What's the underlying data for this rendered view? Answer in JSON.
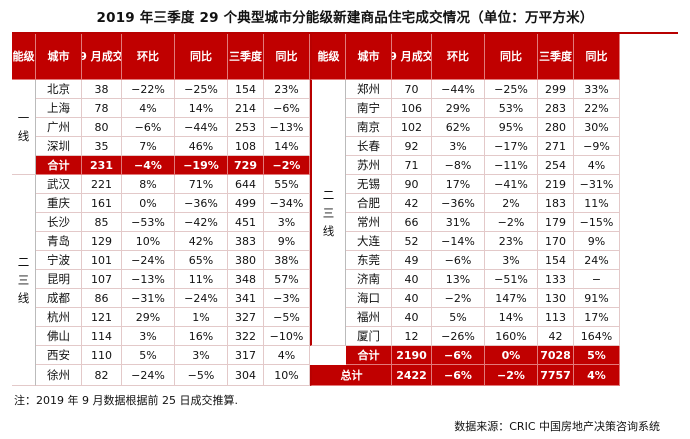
{
  "title": "2019 年三季度 29 个典型城市分能级新建商品住宅成交情况（单位：万平方米）",
  "headers": [
    "能级",
    "城市",
    "9 月成交",
    "环比",
    "同比",
    "三季度",
    "同比"
  ],
  "left": {
    "tier1": {
      "label": [
        "一",
        "线"
      ],
      "rows": [
        [
          "北京",
          "38",
          "−22%",
          "−25%",
          "154",
          "23%"
        ],
        [
          "上海",
          "78",
          "4%",
          "14%",
          "214",
          "−6%"
        ],
        [
          "广州",
          "80",
          "−6%",
          "−44%",
          "253",
          "−13%"
        ],
        [
          "深圳",
          "35",
          "7%",
          "46%",
          "108",
          "14%"
        ]
      ],
      "subtotal": [
        "合计",
        "231",
        "−4%",
        "−19%",
        "729",
        "−2%"
      ]
    },
    "tier23": {
      "label": [
        "二",
        "三",
        "线"
      ],
      "rows": [
        [
          "武汉",
          "221",
          "8%",
          "71%",
          "644",
          "55%"
        ],
        [
          "重庆",
          "161",
          "0%",
          "−36%",
          "499",
          "−34%"
        ],
        [
          "长沙",
          "85",
          "−53%",
          "−42%",
          "451",
          "3%"
        ],
        [
          "青岛",
          "129",
          "10%",
          "42%",
          "383",
          "9%"
        ],
        [
          "宁波",
          "101",
          "−24%",
          "65%",
          "380",
          "38%"
        ],
        [
          "昆明",
          "107",
          "−13%",
          "11%",
          "348",
          "57%"
        ],
        [
          "成都",
          "86",
          "−31%",
          "−24%",
          "341",
          "−3%"
        ],
        [
          "杭州",
          "121",
          "29%",
          "1%",
          "327",
          "−5%"
        ],
        [
          "佛山",
          "114",
          "3%",
          "16%",
          "322",
          "−10%"
        ],
        [
          "西安",
          "110",
          "5%",
          "3%",
          "317",
          "4%"
        ],
        [
          "徐州",
          "82",
          "−24%",
          "−5%",
          "304",
          "10%"
        ]
      ]
    }
  },
  "right": {
    "label": [
      "二",
      "三",
      "线"
    ],
    "rows": [
      [
        "郑州",
        "70",
        "−44%",
        "−25%",
        "299",
        "33%"
      ],
      [
        "南宁",
        "106",
        "29%",
        "53%",
        "283",
        "22%"
      ],
      [
        "南京",
        "102",
        "62%",
        "95%",
        "280",
        "30%"
      ],
      [
        "长春",
        "92",
        "3%",
        "−17%",
        "271",
        "−9%"
      ],
      [
        "苏州",
        "71",
        "−8%",
        "−11%",
        "254",
        "4%"
      ],
      [
        "无锡",
        "90",
        "17%",
        "−41%",
        "219",
        "−31%"
      ],
      [
        "合肥",
        "42",
        "−36%",
        "2%",
        "183",
        "11%"
      ],
      [
        "常州",
        "66",
        "31%",
        "−2%",
        "179",
        "−15%"
      ],
      [
        "大连",
        "52",
        "−14%",
        "23%",
        "170",
        "9%"
      ],
      [
        "东莞",
        "49",
        "−6%",
        "3%",
        "154",
        "24%"
      ],
      [
        "济南",
        "40",
        "13%",
        "−51%",
        "133",
        "−"
      ],
      [
        "海口",
        "40",
        "−2%",
        "147%",
        "130",
        "91%"
      ],
      [
        "福州",
        "40",
        "5%",
        "14%",
        "113",
        "17%"
      ],
      [
        "厦门",
        "12",
        "−26%",
        "160%",
        "42",
        "164%"
      ]
    ],
    "subtotal": [
      "合计",
      "2190",
      "−6%",
      "0%",
      "7028",
      "5%"
    ],
    "total": [
      "总计",
      "2422",
      "−6%",
      "−2%",
      "7757",
      "4%"
    ]
  },
  "note": "注：2019 年 9 月数据根据前 25 日成交推算.",
  "source": "数据来源：CRIC 中国房地产决策咨询系统",
  "colors": {
    "header_red": "#c00000",
    "border_light": "#e3c9c9"
  }
}
